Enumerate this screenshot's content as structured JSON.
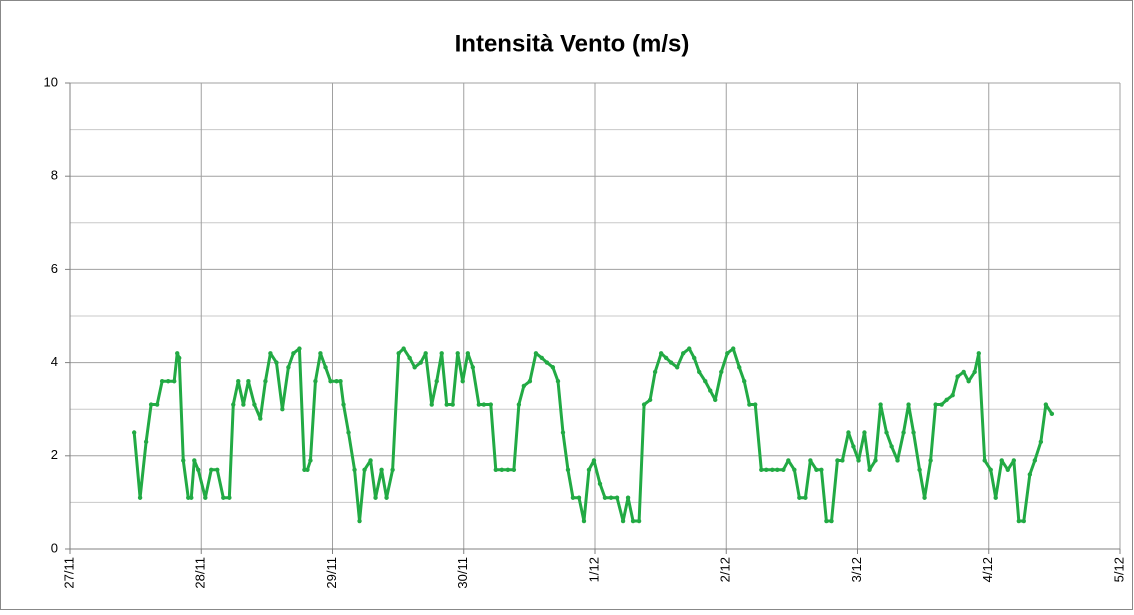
{
  "chart_data": {
    "type": "line",
    "title": "Intensità Vento (m/s)",
    "xlim": [
      0,
      8
    ],
    "xticks": [
      {
        "value": 0,
        "label": "27/11"
      },
      {
        "value": 1,
        "label": "28/11"
      },
      {
        "value": 2,
        "label": "29/11"
      },
      {
        "value": 3,
        "label": "30/11"
      },
      {
        "value": 4,
        "label": "1/12"
      },
      {
        "value": 5,
        "label": "2/12"
      },
      {
        "value": 6,
        "label": "3/12"
      },
      {
        "value": 7,
        "label": "4/12"
      },
      {
        "value": 8,
        "label": "5/12"
      }
    ],
    "ylim": [
      0,
      10
    ],
    "yticks": [
      0,
      2,
      4,
      6,
      8,
      10
    ],
    "minor_yticks": [
      1,
      3,
      5,
      7,
      9
    ],
    "grid": true,
    "x": [
      0.489,
      0.534,
      0.58,
      0.618,
      0.664,
      0.702,
      0.748,
      0.794,
      0.817,
      0.832,
      0.863,
      0.901,
      0.924,
      0.947,
      0.977,
      1.031,
      1.076,
      1.122,
      1.168,
      1.214,
      1.244,
      1.282,
      1.321,
      1.359,
      1.405,
      1.45,
      1.489,
      1.527,
      1.573,
      1.618,
      1.664,
      1.702,
      1.748,
      1.786,
      1.809,
      1.832,
      1.87,
      1.908,
      1.947,
      1.985,
      2.031,
      2.061,
      2.084,
      2.122,
      2.168,
      2.206,
      2.244,
      2.29,
      2.328,
      2.374,
      2.412,
      2.458,
      2.504,
      2.542,
      2.588,
      2.626,
      2.672,
      2.71,
      2.756,
      2.794,
      2.832,
      2.87,
      2.916,
      2.954,
      2.992,
      3.031,
      3.069,
      3.115,
      3.153,
      3.206,
      3.244,
      3.29,
      3.336,
      3.382,
      3.42,
      3.458,
      3.504,
      3.55,
      3.595,
      3.634,
      3.679,
      3.718,
      3.756,
      3.794,
      3.832,
      3.878,
      3.916,
      3.954,
      3.992,
      4.038,
      4.076,
      4.122,
      4.168,
      4.214,
      4.252,
      4.29,
      4.336,
      4.374,
      4.42,
      4.458,
      4.504,
      4.542,
      4.58,
      4.626,
      4.672,
      4.718,
      4.756,
      4.794,
      4.84,
      4.878,
      4.916,
      4.962,
      5.008,
      5.053,
      5.099,
      5.137,
      5.176,
      5.221,
      5.267,
      5.305,
      5.351,
      5.389,
      5.435,
      5.473,
      5.519,
      5.557,
      5.603,
      5.641,
      5.687,
      5.725,
      5.763,
      5.802,
      5.847,
      5.885,
      5.931,
      5.969,
      6.008,
      6.053,
      6.092,
      6.137,
      6.176,
      6.221,
      6.26,
      6.305,
      6.351,
      6.389,
      6.427,
      6.473,
      6.511,
      6.557,
      6.595,
      6.641,
      6.679,
      6.725,
      6.763,
      6.809,
      6.847,
      6.893,
      6.924,
      6.969,
      7.015,
      7.053,
      7.099,
      7.145,
      7.191,
      7.229,
      7.267,
      7.313,
      7.351,
      7.397,
      7.435,
      7.481
    ],
    "series": [
      {
        "color": "#22aa44",
        "values": [
          2.5,
          1.1,
          2.3,
          3.1,
          3.1,
          3.6,
          3.6,
          3.6,
          4.2,
          4.1,
          1.9,
          1.1,
          1.1,
          1.9,
          1.7,
          1.1,
          1.7,
          1.7,
          1.1,
          1.1,
          3.1,
          3.6,
          3.1,
          3.6,
          3.1,
          2.8,
          3.6,
          4.2,
          4.0,
          3.0,
          3.9,
          4.2,
          4.3,
          1.7,
          1.7,
          1.9,
          3.6,
          4.2,
          3.9,
          3.6,
          3.6,
          3.6,
          3.1,
          2.5,
          1.7,
          0.6,
          1.7,
          1.9,
          1.1,
          1.7,
          1.1,
          1.7,
          4.2,
          4.3,
          4.1,
          3.9,
          4.0,
          4.2,
          3.1,
          3.6,
          4.2,
          3.1,
          3.1,
          4.2,
          3.6,
          4.2,
          3.9,
          3.1,
          3.1,
          3.1,
          1.7,
          1.7,
          1.7,
          1.7,
          3.1,
          3.5,
          3.6,
          4.2,
          4.1,
          4.0,
          3.9,
          3.6,
          2.5,
          1.7,
          1.1,
          1.1,
          0.6,
          1.7,
          1.9,
          1.4,
          1.1,
          1.1,
          1.1,
          0.6,
          1.1,
          0.6,
          0.6,
          3.1,
          3.2,
          3.8,
          4.2,
          4.1,
          4.0,
          3.9,
          4.2,
          4.3,
          4.1,
          3.8,
          3.6,
          3.4,
          3.2,
          3.8,
          4.2,
          4.3,
          3.9,
          3.6,
          3.1,
          3.1,
          1.7,
          1.7,
          1.7,
          1.7,
          1.7,
          1.9,
          1.7,
          1.1,
          1.1,
          1.9,
          1.7,
          1.7,
          0.6,
          0.6,
          1.9,
          1.9,
          2.5,
          2.2,
          1.9,
          2.5,
          1.7,
          1.9,
          3.1,
          2.5,
          2.2,
          1.9,
          2.5,
          3.1,
          2.5,
          1.7,
          1.1,
          1.9,
          3.1,
          3.1,
          3.2,
          3.3,
          3.7,
          3.8,
          3.6,
          3.8,
          4.2,
          1.9,
          1.7,
          1.1,
          1.9,
          1.7,
          1.9,
          0.6,
          0.6,
          1.6,
          1.9,
          2.3,
          3.1,
          2.9
        ]
      }
    ]
  }
}
